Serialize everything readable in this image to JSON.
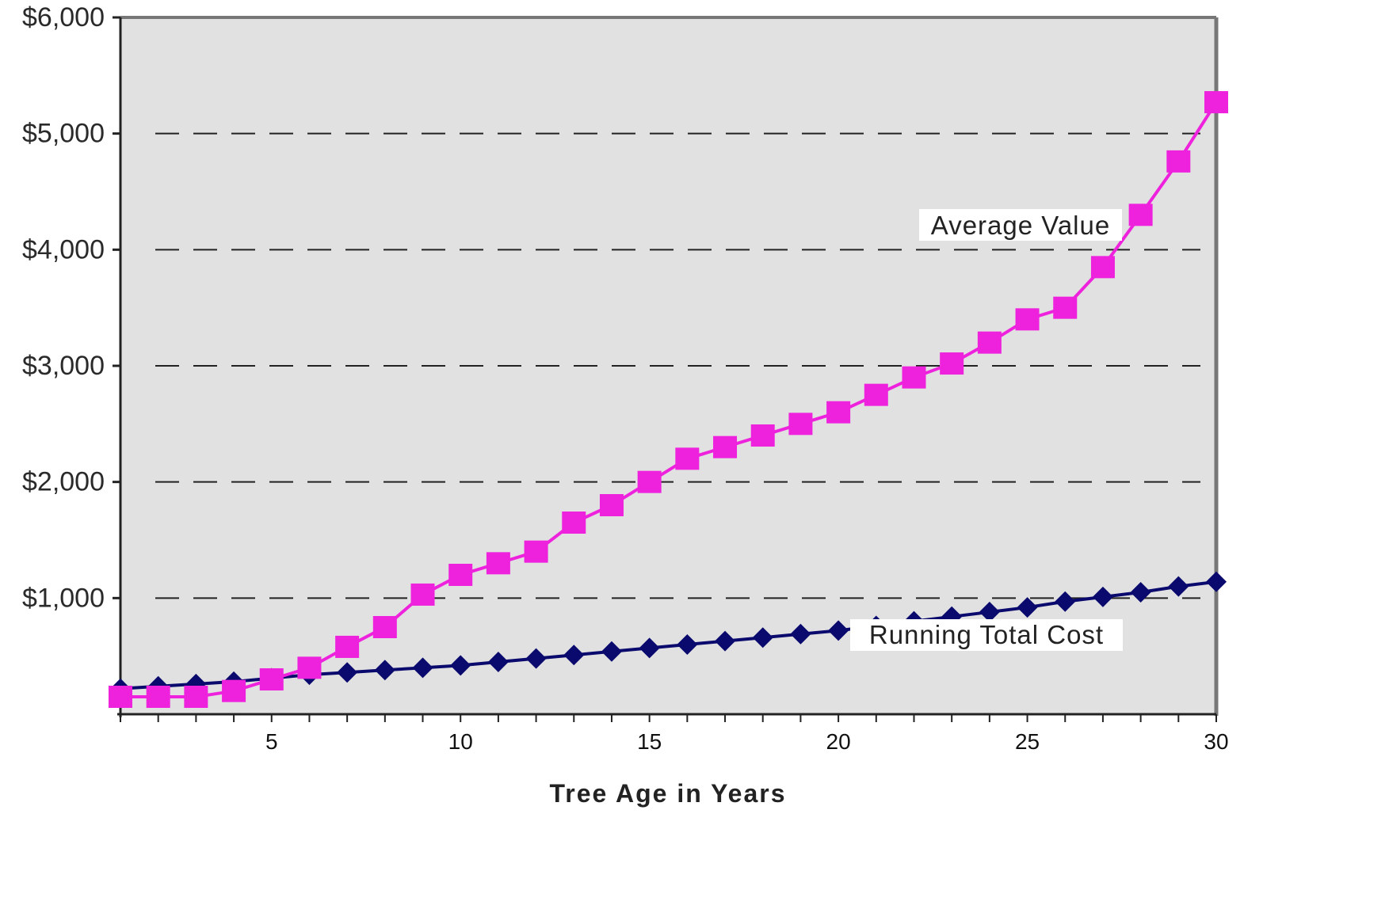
{
  "chart_data": {
    "type": "line",
    "title": "",
    "xlabel": "Tree Age in Years",
    "ylabel": "",
    "xlim": [
      1,
      30
    ],
    "ylim": [
      0,
      6000
    ],
    "grid": "dashed horizontal",
    "xticks": [
      5,
      10,
      15,
      20,
      25,
      30
    ],
    "x_tick_labels": [
      "5",
      "10",
      "15",
      "20",
      "25",
      "30"
    ],
    "yticks": [
      1000,
      2000,
      3000,
      4000,
      5000,
      6000
    ],
    "y_tick_labels": [
      "$1,000",
      "$2,000",
      "$3,000",
      "$4,000",
      "$5,000",
      "$6,000"
    ],
    "x": [
      1,
      2,
      3,
      4,
      5,
      6,
      7,
      8,
      9,
      10,
      11,
      12,
      13,
      14,
      15,
      16,
      17,
      18,
      19,
      20,
      21,
      22,
      23,
      24,
      25,
      26,
      27,
      28,
      29,
      30
    ],
    "series": [
      {
        "name": "Average Value",
        "color": "#ee22dd",
        "marker": "square",
        "values": [
          150,
          150,
          150,
          200,
          300,
          400,
          580,
          750,
          1030,
          1200,
          1300,
          1400,
          1650,
          1800,
          2000,
          2200,
          2300,
          2400,
          2500,
          2600,
          2750,
          2900,
          3020,
          3200,
          3400,
          3500,
          3850,
          4300,
          4760,
          5270
        ]
      },
      {
        "name": "Running Total Cost",
        "color": "#0a0a6e",
        "marker": "diamond",
        "values": [
          220,
          240,
          260,
          280,
          310,
          340,
          360,
          380,
          400,
          420,
          450,
          480,
          510,
          540,
          570,
          600,
          630,
          660,
          690,
          720,
          760,
          800,
          840,
          880,
          920,
          970,
          1010,
          1050,
          1100,
          1140
        ]
      }
    ],
    "colors": {
      "plot_background": "#e1e1e1",
      "axis": "#222222",
      "frame": "#777777",
      "grid": "#222222"
    }
  }
}
